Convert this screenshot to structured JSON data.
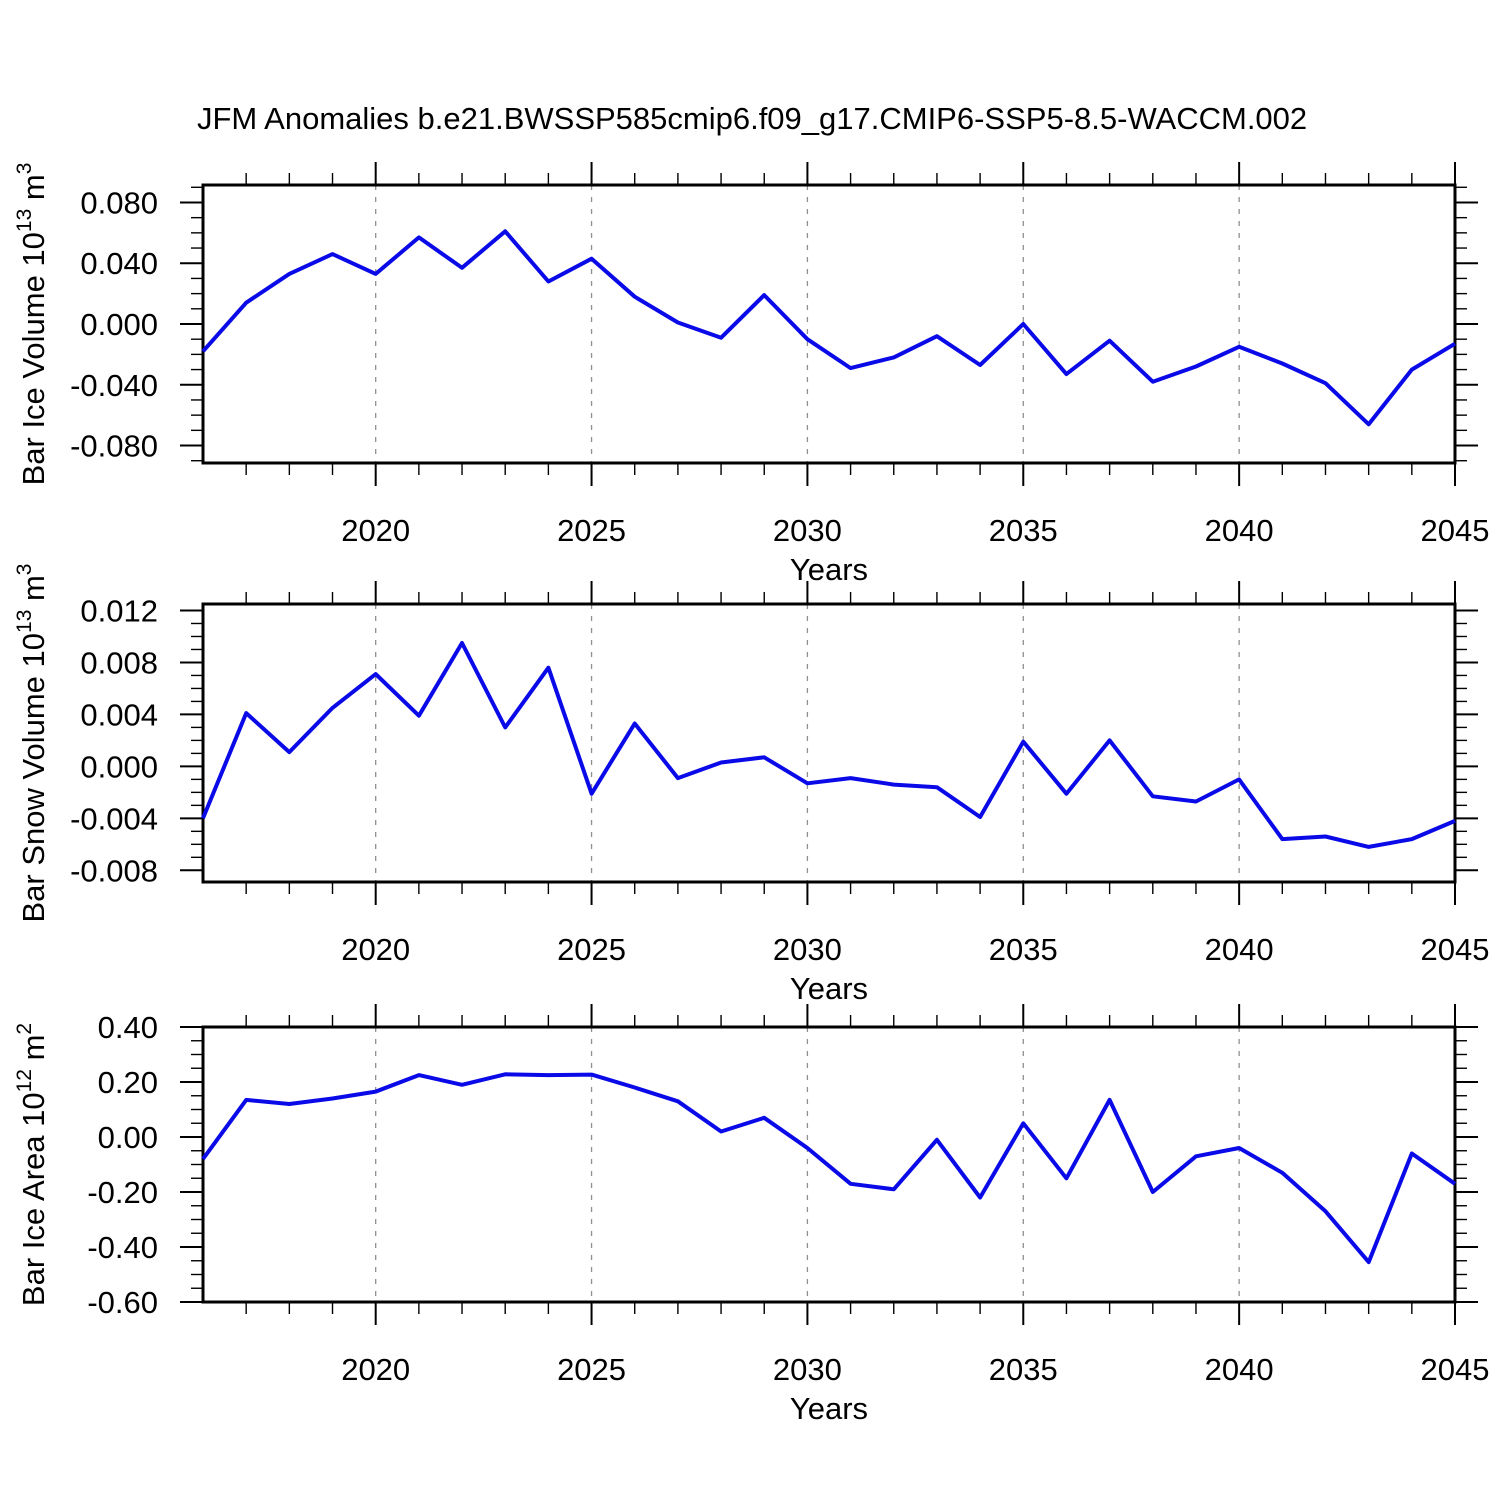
{
  "title": "JFM Anomalies b.e21.BWSSP585cmip6.f09_g17.CMIP6-SSP5-8.5-WACCM.002",
  "chart_data": {
    "type": "line",
    "title": "JFM Anomalies b.e21.BWSSP585cmip6.f09_g17.CMIP6-SSP5-8.5-WACCM.002",
    "xlabel": "Years",
    "x_range": [
      2016,
      2045
    ],
    "x": [
      2016,
      2017,
      2018,
      2019,
      2020,
      2021,
      2022,
      2023,
      2024,
      2025,
      2026,
      2027,
      2028,
      2029,
      2030,
      2031,
      2032,
      2033,
      2034,
      2035,
      2036,
      2037,
      2038,
      2039,
      2040,
      2041,
      2042,
      2043,
      2044,
      2045
    ],
    "x_major_ticks": [
      2020,
      2025,
      2030,
      2035,
      2040,
      2045
    ],
    "x_major_tick_labels": [
      "2020",
      "2025",
      "2030",
      "2035",
      "2040",
      "2045"
    ],
    "x_minor_tick_step_years": 1,
    "grid": "vertical-dashed-at-major-x-ticks",
    "legend": "none",
    "line_color": "#0a0ae8",
    "gridline_color": "#8f8f8f",
    "axis_color": "#000000",
    "panels": [
      {
        "name": "bar-ice-volume",
        "ylabel": "Bar Ice Volume 10^13 m^3",
        "ylabel_parts": [
          {
            "text": "Bar Ice Volume 10",
            "sup": false
          },
          {
            "text": "13",
            "sup": true
          },
          {
            "text": " m",
            "sup": false
          },
          {
            "text": "3",
            "sup": true
          }
        ],
        "ylim": [
          -0.0915,
          0.0915
        ],
        "yticks": [
          0.08,
          0.04,
          0.0,
          -0.04,
          -0.08
        ],
        "ytick_labels": [
          "0.080",
          "0.040",
          "0.000",
          "-0.040",
          "-0.080"
        ],
        "y_minor_step": 0.01,
        "values": [
          -0.018,
          0.014,
          0.033,
          0.046,
          0.033,
          0.057,
          0.037,
          0.061,
          0.028,
          0.043,
          0.018,
          0.001,
          -0.009,
          0.019,
          -0.01,
          -0.029,
          -0.022,
          -0.008,
          -0.027,
          0.0,
          -0.033,
          -0.011,
          -0.038,
          -0.028,
          -0.015,
          -0.026,
          -0.039,
          -0.066,
          -0.03,
          -0.013
        ]
      },
      {
        "name": "bar-snow-volume",
        "ylabel": "Bar Snow Volume 10^13 m^3",
        "ylabel_parts": [
          {
            "text": "Bar Snow Volume 10",
            "sup": false
          },
          {
            "text": "13",
            "sup": true
          },
          {
            "text": " m",
            "sup": false
          },
          {
            "text": "3",
            "sup": true
          }
        ],
        "ylim": [
          -0.0089,
          0.0125
        ],
        "yticks": [
          0.012,
          0.008,
          0.004,
          0.0,
          -0.004,
          -0.008
        ],
        "ytick_labels": [
          "0.012",
          "0.008",
          "0.004",
          "0.000",
          "-0.004",
          "-0.008"
        ],
        "y_minor_step": 0.001,
        "values": [
          -0.004,
          0.0041,
          0.0011,
          0.0045,
          0.0071,
          0.0039,
          0.0095,
          0.003,
          0.0076,
          -0.0021,
          0.0033,
          -0.0009,
          0.0003,
          0.0007,
          -0.0013,
          -0.0009,
          -0.0014,
          -0.0016,
          -0.0039,
          0.0019,
          -0.0021,
          0.002,
          -0.0023,
          -0.0027,
          -0.001,
          -0.0056,
          -0.0054,
          -0.0062,
          -0.0056,
          -0.0042
        ]
      },
      {
        "name": "bar-ice-area",
        "ylabel": "Bar Ice Area 10^12 m^2",
        "ylabel_parts": [
          {
            "text": "Bar Ice Area 10",
            "sup": false
          },
          {
            "text": "12",
            "sup": true
          },
          {
            "text": " m",
            "sup": false
          },
          {
            "text": "2",
            "sup": true
          }
        ],
        "ylim": [
          -0.6,
          0.4
        ],
        "yticks": [
          0.4,
          0.2,
          0.0,
          -0.2,
          -0.4,
          -0.6
        ],
        "ytick_labels": [
          "0.40",
          "0.20",
          "0.00",
          "-0.20",
          "-0.40",
          "-0.60"
        ],
        "y_minor_step": 0.05,
        "values": [
          -0.08,
          0.135,
          0.12,
          0.14,
          0.165,
          0.225,
          0.19,
          0.228,
          0.225,
          0.227,
          0.18,
          0.13,
          0.02,
          0.07,
          -0.04,
          -0.17,
          -0.19,
          -0.01,
          -0.22,
          0.05,
          -0.15,
          0.135,
          -0.2,
          -0.07,
          -0.04,
          -0.13,
          -0.27,
          -0.455,
          -0.06,
          -0.17
        ]
      }
    ]
  }
}
